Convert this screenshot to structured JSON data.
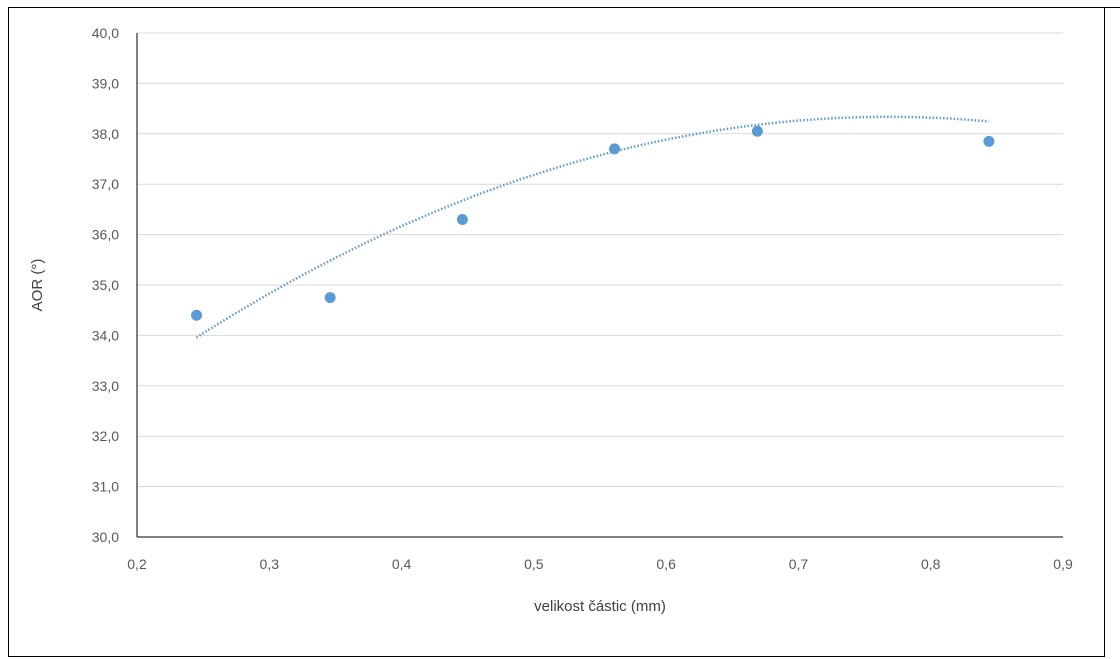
{
  "chart_data": {
    "type": "scatter",
    "title": "",
    "xlabel": "velikost částic (mm)",
    "ylabel": "AOR (°)",
    "xlim": [
      0.2,
      0.9
    ],
    "ylim": [
      30.0,
      40.0
    ],
    "x_ticks": [
      "0,2",
      "0,3",
      "0,4",
      "0,5",
      "0,6",
      "0,7",
      "0,8",
      "0,9"
    ],
    "y_ticks": [
      "30,0",
      "31,0",
      "32,0",
      "33,0",
      "34,0",
      "35,0",
      "36,0",
      "37,0",
      "38,0",
      "39,0",
      "40,0"
    ],
    "grid": true,
    "legend": "none",
    "series": [
      {
        "marker_color": "#5b9bd5",
        "points": [
          {
            "x": 0.245,
            "y": 34.4
          },
          {
            "x": 0.346,
            "y": 34.75
          },
          {
            "x": 0.446,
            "y": 36.3
          },
          {
            "x": 0.561,
            "y": 37.7
          },
          {
            "x": 0.669,
            "y": 38.05
          },
          {
            "x": 0.844,
            "y": 37.85
          }
        ]
      }
    ],
    "trendline": {
      "type": "polynomial",
      "style": "dotted",
      "color": "#5b9bd5",
      "x_range": [
        0.245,
        0.844
      ],
      "coefficients": [
        28.9,
        24.56,
        -15.98
      ]
    },
    "colors": {
      "grid": "#d9d9d9",
      "axis": "#000000"
    }
  }
}
